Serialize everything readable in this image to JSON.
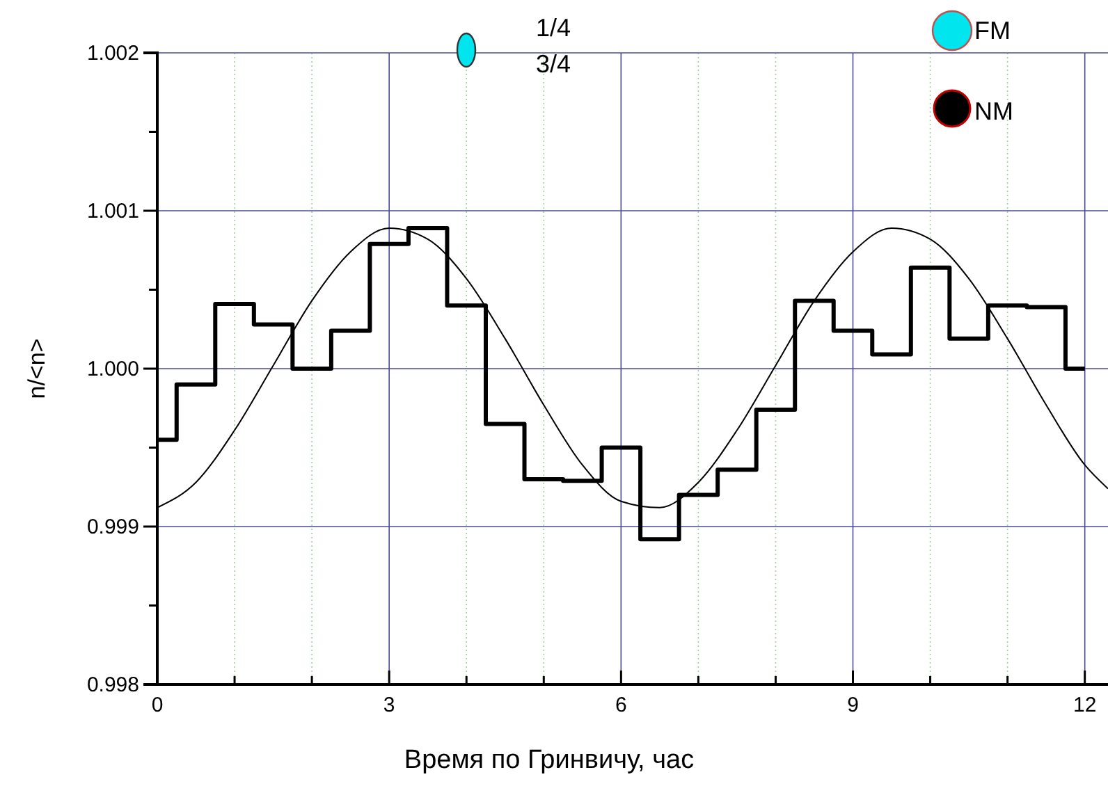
{
  "chart_data": {
    "type": "step",
    "xlabel": "Время по Гринвичу, час",
    "ylabel": "n/<n>",
    "xlim": [
      0,
      12.3
    ],
    "ylim": [
      0.998,
      1.002
    ],
    "xticks": [
      0,
      {
        "value": 1,
        "label": null
      },
      {
        "value": 2,
        "label": null
      },
      3,
      {
        "value": 4,
        "label": null
      },
      {
        "value": 5,
        "label": null
      },
      6,
      {
        "value": 7,
        "label": null
      },
      {
        "value": 8,
        "label": null
      },
      9,
      {
        "value": 10,
        "label": null
      },
      {
        "value": 11,
        "label": null
      },
      12
    ],
    "yticks": [
      0.998,
      {
        "value": 0.9985,
        "label": null
      },
      0.999,
      {
        "value": 0.9995,
        "label": null
      },
      {
        "value": 1,
        "label": "1.000"
      },
      {
        "value": 1.0005,
        "label": null
      },
      1.001,
      {
        "value": 1.0015,
        "label": null
      },
      1.002
    ],
    "grid": true,
    "annotations": [
      "1/4",
      "3/4",
      "FM",
      "NM"
    ],
    "series": [
      {
        "type": "step",
        "color": "#000000",
        "x": [
          0,
          0.5,
          1,
          1.5,
          2,
          2.5,
          3,
          3.5,
          4,
          4.5,
          5,
          5.5,
          6,
          6.5,
          7,
          7.5,
          8,
          8.5,
          9,
          9.5,
          10,
          10.5,
          11,
          11.5,
          12
        ],
        "values": [
          0.99955,
          0.9999,
          1.00041,
          1.00028,
          1.0,
          1.00024,
          1.00079,
          1.00089,
          1.0004,
          0.99965,
          0.9993,
          0.99929,
          0.9995,
          0.99892,
          0.9992,
          0.99936,
          0.99974,
          1.00043,
          1.00024,
          1.00009,
          1.00064,
          1.00019,
          1.0004,
          1.00039,
          1.0
        ]
      },
      {
        "type": "line",
        "color": "#000000",
        "x": [
          0,
          0.5,
          1,
          1.5,
          2,
          2.5,
          3,
          3.5,
          4,
          4.5,
          5,
          5.5,
          6,
          6.5,
          7,
          7.5,
          8,
          8.5,
          9,
          9.5,
          10,
          10.5,
          11,
          11.5,
          12,
          12.3
        ],
        "values": [
          0.99912,
          0.99928,
          0.99961,
          1.00002,
          1.00043,
          1.00074,
          1.00089,
          1.00082,
          1.00057,
          1.00019,
          0.99977,
          0.99939,
          0.99916,
          0.99912,
          0.99928,
          0.99961,
          1.00002,
          1.00043,
          1.00074,
          1.00089,
          1.00082,
          1.00057,
          1.00019,
          0.99977,
          0.99939,
          0.99924
        ]
      }
    ]
  }
}
